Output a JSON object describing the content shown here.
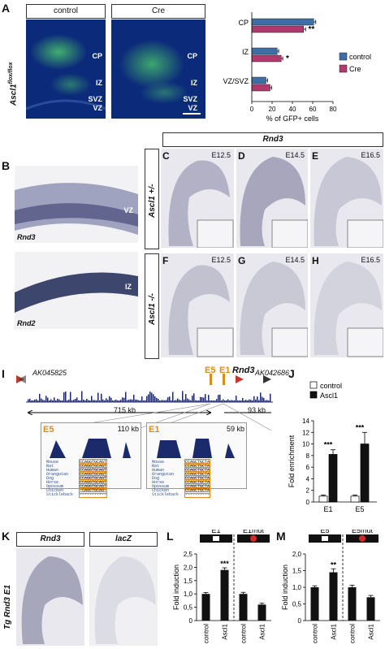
{
  "panel_letters": [
    "A",
    "B",
    "C",
    "D",
    "E",
    "F",
    "G",
    "H",
    "I",
    "J",
    "K",
    "L",
    "M"
  ],
  "panelA": {
    "ylabel": "Ascl1",
    "ylabel_sup": "flox/flox",
    "conditions": [
      "control",
      "Cre"
    ],
    "zones": [
      "CP",
      "IZ",
      "SVZ",
      "VZ"
    ]
  },
  "panelB": {
    "labels": [
      "Rnd3",
      "Rnd2"
    ],
    "zones": [
      "VZ",
      "IZ"
    ]
  },
  "panelCH": {
    "gene": "Rnd3",
    "genotypes": [
      "Ascl1 +/-",
      "Ascl1 -/-"
    ],
    "stages": [
      "E12.5",
      "E14.5",
      "E16.5"
    ]
  },
  "panelI": {
    "genes": [
      "AK045825",
      "AK042686"
    ],
    "elements": [
      "E5",
      "E1",
      "Rnd3"
    ],
    "distances": [
      "715 kb",
      "93 kb"
    ],
    "insetA": {
      "label": "E5",
      "dist": "110 kb",
      "seqs": [
        "CCAGGTGCAGT",
        "CCAGGTGCAGT",
        "CCAGGTGCAGT",
        "CCAGGTGCAGT",
        "CCAGGTGCAGT",
        "CCAGGTGCAGT",
        "CCAGGTGCAGT",
        "-CAGCTGCAG-",
        "-----------"
      ]
    },
    "insetB": {
      "label": "E1",
      "dist": "59 kb",
      "seqs": [
        "CCAGCTGCTA",
        "CCAGCTGCTA",
        "CCAGCTGCTA",
        "CCAGCTGCTA",
        "CCAGCTGCTA",
        "CCAGCTGCTA",
        "CCAGCTGCTA",
        "CCAGCTGCTA",
        "----------"
      ]
    },
    "species": [
      "Mouse",
      "Rat",
      "Human",
      "Orangutan",
      "Dog",
      "Horse",
      "Opossum",
      "Chicken",
      "Stickleback"
    ]
  },
  "panelK": {
    "ylabel": "Tg Rnd3 E1",
    "headers": [
      "Rnd3",
      "lacZ"
    ]
  },
  "colors": {
    "control": "#3d6ea8",
    "cre": "#b03a6e",
    "ascl1": "#111111",
    "fluo_bg": "#0c2a7a",
    "gfp": "#4cd06a"
  },
  "chart_data": [
    {
      "type": "bar",
      "panel": "A",
      "orientation": "horizontal",
      "categories": [
        "CP",
        "IZ",
        "VZ/SVZ"
      ],
      "series": [
        {
          "name": "control",
          "values": [
            61,
            25,
            14
          ],
          "errors": [
            2,
            1.5,
            1.5
          ]
        },
        {
          "name": "Cre",
          "values": [
            51,
            29,
            18
          ],
          "errors": [
            2,
            1.5,
            1.5
          ]
        }
      ],
      "xlabel": "% of GFP+ cells",
      "xlim": [
        0,
        80
      ],
      "xticks": [
        "0",
        "20",
        "40",
        "60",
        "80"
      ],
      "annotations": [
        "**",
        "*"
      ],
      "legend": "right"
    },
    {
      "type": "bar",
      "panel": "J",
      "categories": [
        "E1",
        "E5"
      ],
      "series": [
        {
          "name": "control",
          "values": [
            1.0,
            1.0
          ],
          "errors": [
            0.2,
            0.2
          ]
        },
        {
          "name": "Ascl1",
          "values": [
            8.2,
            10.0
          ],
          "errors": [
            0.8,
            2.0
          ]
        }
      ],
      "ylabel": "Fold enrichment",
      "ylim": [
        0,
        14
      ],
      "yticks": [
        "0",
        "2",
        "4",
        "6",
        "8",
        "10",
        "12",
        "14"
      ],
      "annotations": [
        "***",
        "***"
      ],
      "legend": "top"
    },
    {
      "type": "bar",
      "panel": "L",
      "groups": [
        "E1",
        "E1mut"
      ],
      "categories": [
        "control",
        "Ascl1",
        "control",
        "Ascl1"
      ],
      "values": [
        1.0,
        1.9,
        1.0,
        0.6
      ],
      "errors": [
        0.02,
        0.05,
        0.03,
        0.02
      ],
      "ylabel": "Fold induction",
      "ylim": [
        0,
        2.5
      ],
      "yticks": [
        "0",
        "0,5",
        "1,0",
        "1,5",
        "2,0",
        "2,5"
      ],
      "annotations": [
        "***"
      ]
    },
    {
      "type": "bar",
      "panel": "M",
      "groups": [
        "E5",
        "E5mut"
      ],
      "categories": [
        "control",
        "Ascl1",
        "control",
        "Ascl1"
      ],
      "values": [
        1.0,
        1.45,
        1.0,
        0.7
      ],
      "errors": [
        0.02,
        0.08,
        0.04,
        0.03
      ],
      "ylabel": "Fold induction",
      "ylim": [
        0,
        2.0
      ],
      "yticks": [
        "0",
        "0,5",
        "1,0",
        "1,5",
        "2,0"
      ],
      "annotations": [
        "**"
      ]
    }
  ]
}
